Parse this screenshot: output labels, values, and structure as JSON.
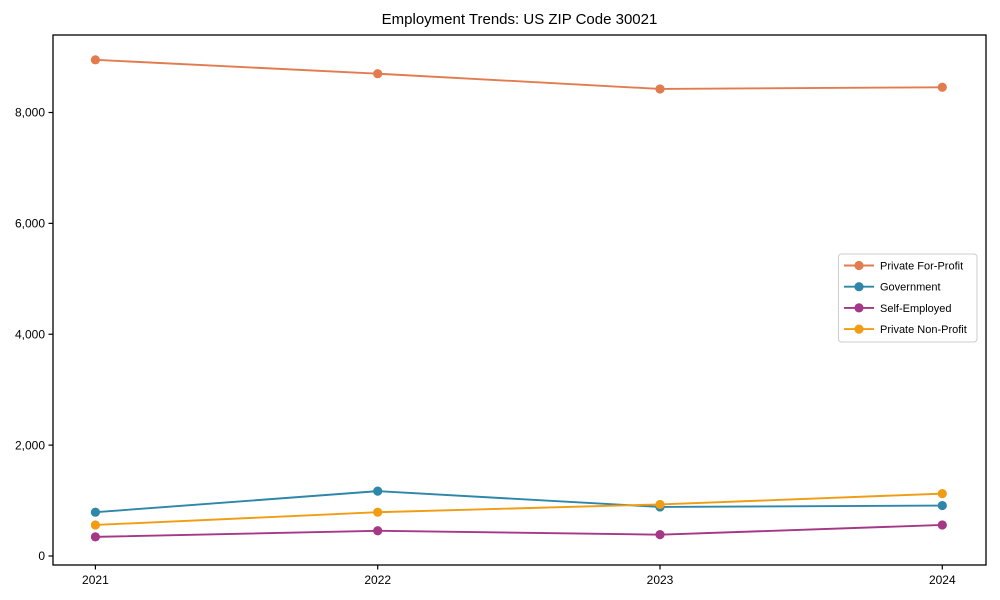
{
  "chart_data": {
    "type": "line",
    "title": "Employment Trends: US ZIP Code 30021",
    "xlabel": "",
    "ylabel": "",
    "categories": [
      "2021",
      "2022",
      "2023",
      "2024"
    ],
    "series": [
      {
        "name": "Private For-Profit",
        "color": "#E27C4F",
        "values": [
          8950,
          8700,
          8425,
          8455
        ]
      },
      {
        "name": "Government",
        "color": "#2E86A8",
        "values": [
          790,
          1170,
          885,
          910
        ]
      },
      {
        "name": "Self-Employed",
        "color": "#A53787",
        "values": [
          345,
          455,
          385,
          560
        ]
      },
      {
        "name": "Private Non-Profit",
        "color": "#F09D14",
        "values": [
          560,
          790,
          930,
          1125
        ]
      }
    ],
    "ylim": [
      0,
      9400
    ],
    "yticks": [
      0,
      2000,
      4000,
      6000,
      8000
    ],
    "ytick_labels": [
      "0",
      "2,000",
      "4,000",
      "6,000",
      "8,000"
    ],
    "legend_position": "center right",
    "grid": false,
    "marker": "circle",
    "axis_color": "#000000",
    "legend_border_color": "#cccccc",
    "background_color": "#ffffff"
  }
}
